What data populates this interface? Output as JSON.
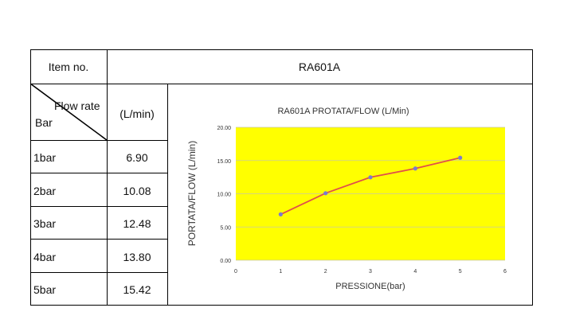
{
  "table": {
    "item_label": "Item no.",
    "item_value": "RA601A",
    "header_flow": "Flow rate",
    "header_bar": "Bar",
    "header_unit": "(L/min)",
    "rows": [
      {
        "bar": "1bar",
        "flow": "6.90"
      },
      {
        "bar": "2bar",
        "flow": "10.08"
      },
      {
        "bar": "3bar",
        "flow": "12.48"
      },
      {
        "bar": "4bar",
        "flow": "13.80"
      },
      {
        "bar": "5bar",
        "flow": "15.42"
      }
    ]
  },
  "chart_data": {
    "type": "line",
    "title": "RA601A   PROTATA/FLOW (L/Min)",
    "xlabel": "PRESSIONE(bar)",
    "ylabel": "PORTATA/FLOW (L/min)",
    "x": [
      1,
      2,
      3,
      4,
      5
    ],
    "values": [
      6.9,
      10.08,
      12.48,
      13.8,
      15.42
    ],
    "xlim": [
      0,
      6
    ],
    "ylim": [
      0,
      20
    ],
    "x_ticks": [
      "0",
      "1",
      "2",
      "3",
      "4",
      "5",
      "6"
    ],
    "y_ticks": [
      "0.00",
      "5.00",
      "10.00",
      "15.00",
      "20.00"
    ],
    "grid": true,
    "plot_background": "#ffff00",
    "line_color": "#e0504b",
    "marker_color": "#7b7bd0"
  }
}
